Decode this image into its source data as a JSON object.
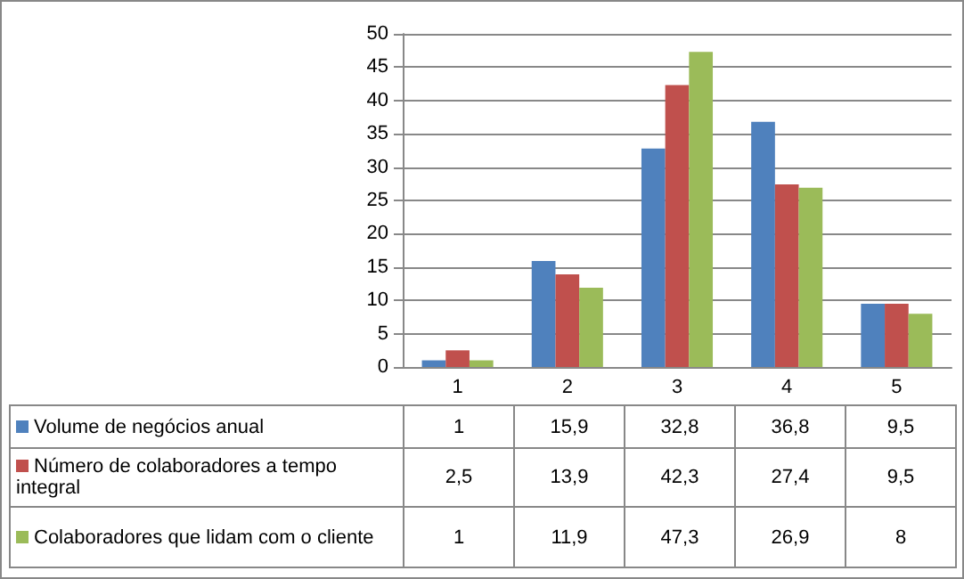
{
  "chart_data": {
    "type": "bar",
    "categories": [
      "1",
      "2",
      "3",
      "4",
      "5"
    ],
    "series": [
      {
        "name": "Volume de negócios anual",
        "color": "#4f81bd",
        "values": [
          1,
          15.9,
          32.8,
          36.8,
          9.5
        ],
        "value_labels": [
          "1",
          "15,9",
          "32,8",
          "36,8",
          "9,5"
        ]
      },
      {
        "name": "Número de colaboradores a tempo integral",
        "color": "#c0504d",
        "values": [
          2.5,
          13.9,
          42.3,
          27.4,
          9.5
        ],
        "value_labels": [
          "2,5",
          "13,9",
          "42,3",
          "27,4",
          "9,5"
        ]
      },
      {
        "name": "Colaboradores que lidam com o cliente",
        "color": "#9bbb59",
        "values": [
          1,
          11.9,
          47.3,
          26.9,
          8
        ],
        "value_labels": [
          "1",
          "11,9",
          "47,3",
          "26,9",
          "8"
        ]
      }
    ],
    "ylim": [
      0,
      50
    ],
    "yticks": [
      0,
      5,
      10,
      15,
      20,
      25,
      30,
      35,
      40,
      45,
      50
    ],
    "grid": "y",
    "legend": "bottom"
  }
}
